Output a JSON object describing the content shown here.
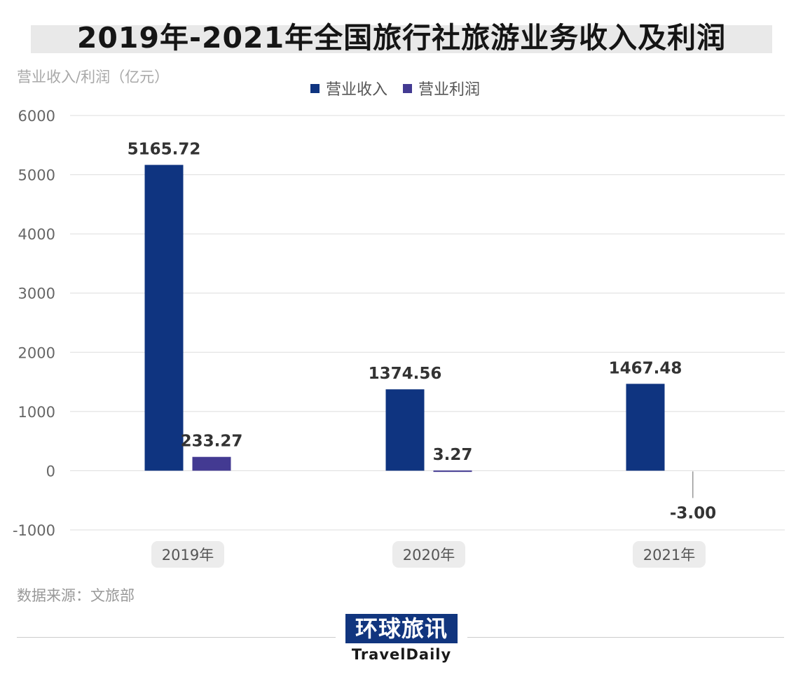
{
  "chart_data": {
    "type": "bar",
    "title": "2019年-2021年全国旅行社旅游业务收入及利润",
    "ylabel": "营业收入/利润（亿元）",
    "xlabel": "",
    "categories": [
      "2019年",
      "2020年",
      "2021年"
    ],
    "series": [
      {
        "name": "营业收入",
        "values": [
          5165.72,
          1374.56,
          1467.48
        ],
        "labels": [
          "5165.72",
          "1374.56",
          "1467.48"
        ],
        "color": "#0f3480"
      },
      {
        "name": "营业利润",
        "values": [
          233.27,
          3.27,
          -3.0
        ],
        "labels": [
          "233.27",
          "3.27",
          "-3.00"
        ],
        "color": "#433a92"
      }
    ],
    "ylim": [
      -1000,
      6000
    ],
    "yticks": [
      6000,
      5000,
      4000,
      3000,
      2000,
      1000,
      0,
      -1000
    ],
    "grid": true,
    "legend": "top-center"
  },
  "source": "数据来源：文旅部",
  "logo": {
    "name": "环球旅讯",
    "subtitle": "TravelDaily"
  }
}
